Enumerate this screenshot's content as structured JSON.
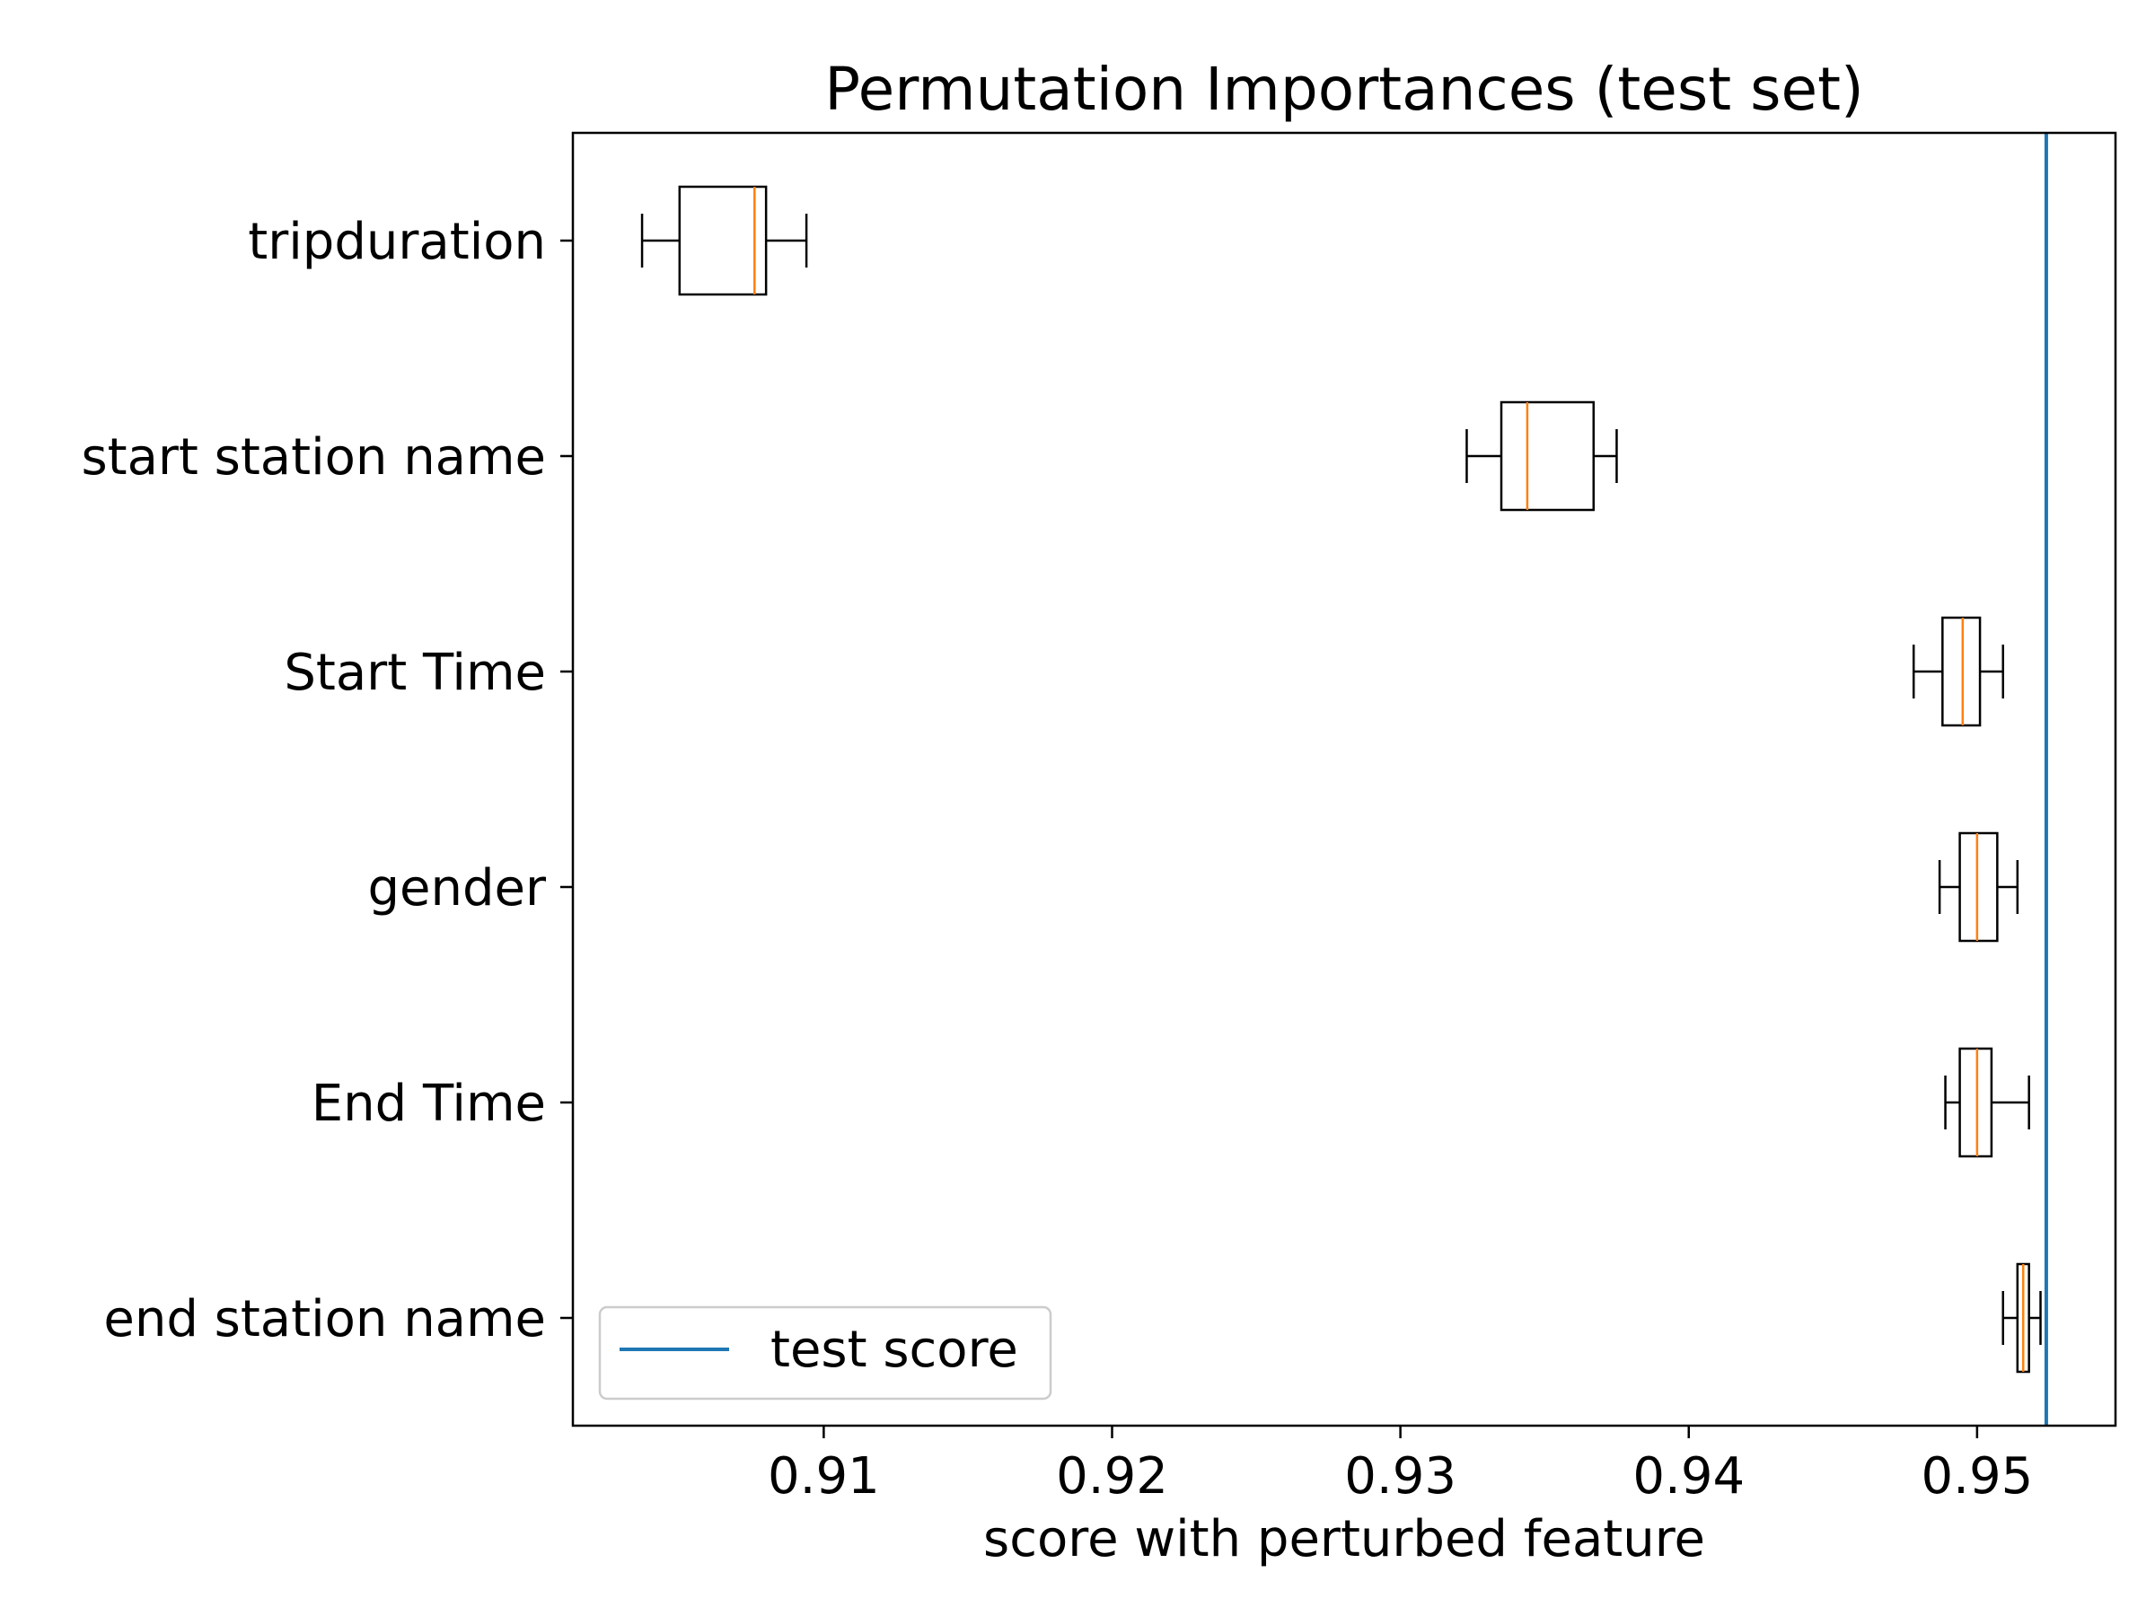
{
  "chart_data": {
    "type": "boxplot",
    "orientation": "horizontal",
    "title": "Permutation Importances (test set)",
    "xlabel": "score with perturbed feature",
    "ylabel": "",
    "xlim": [
      0.9013,
      0.9548
    ],
    "xticks": [
      0.91,
      0.92,
      0.93,
      0.94,
      0.95
    ],
    "xtick_labels": [
      "0.91",
      "0.92",
      "0.93",
      "0.94",
      "0.95"
    ],
    "grid": false,
    "features": [
      {
        "name": "tripduration",
        "whisker_low": 0.9037,
        "q1": 0.905,
        "median": 0.9076,
        "q3": 0.908,
        "whisker_high": 0.9094
      },
      {
        "name": "start station name",
        "whisker_low": 0.9323,
        "q1": 0.9335,
        "median": 0.9344,
        "q3": 0.9367,
        "whisker_high": 0.9375
      },
      {
        "name": "Start Time",
        "whisker_low": 0.9478,
        "q1": 0.9488,
        "median": 0.9495,
        "q3": 0.9501,
        "whisker_high": 0.9509
      },
      {
        "name": "gender",
        "whisker_low": 0.9487,
        "q1": 0.9494,
        "median": 0.95,
        "q3": 0.9507,
        "whisker_high": 0.9514
      },
      {
        "name": "End Time",
        "whisker_low": 0.9489,
        "q1": 0.9494,
        "median": 0.95,
        "q3": 0.9505,
        "whisker_high": 0.9518
      },
      {
        "name": "end station name",
        "whisker_low": 0.9509,
        "q1": 0.9514,
        "median": 0.9516,
        "q3": 0.9518,
        "whisker_high": 0.9522
      }
    ],
    "reference_line": {
      "label": "test score",
      "value": 0.9524,
      "color": "#1f77b4"
    },
    "legend": {
      "entries": [
        "test score"
      ],
      "placement": "lower-left"
    },
    "box_color": "#000000",
    "median_color": "#ff7f0e"
  }
}
